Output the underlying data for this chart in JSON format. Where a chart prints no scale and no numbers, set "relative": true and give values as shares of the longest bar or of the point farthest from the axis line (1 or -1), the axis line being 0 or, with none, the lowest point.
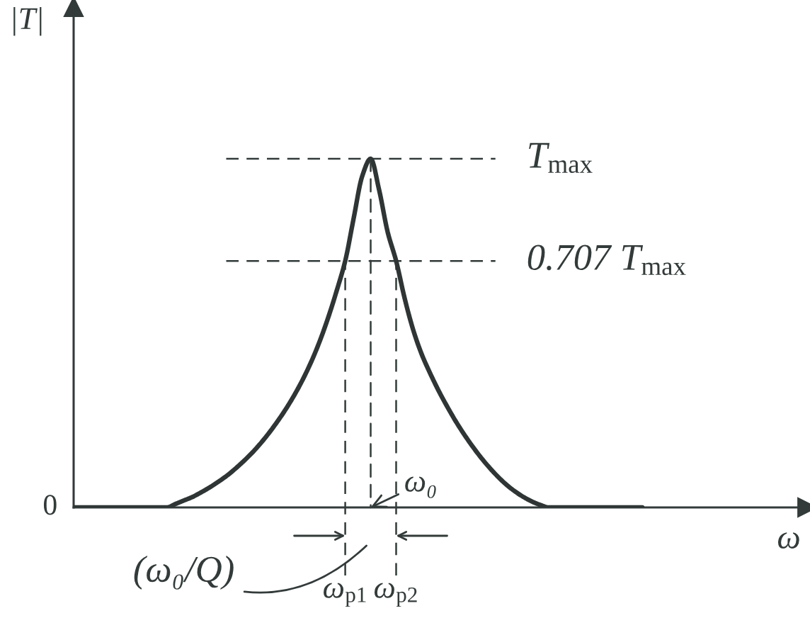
{
  "chart_data": {
    "type": "line",
    "relative": true,
    "ylabel": "|T|",
    "xlabel": "ω",
    "categories": [
      null,
      null,
      null,
      null,
      null,
      null,
      null,
      null,
      null,
      null,
      null,
      null,
      null,
      null,
      null,
      null,
      null,
      null,
      null,
      null,
      null,
      null,
      null,
      null,
      null,
      null,
      null,
      null,
      null,
      null,
      null,
      null,
      "ω$_{p1}$",
      null,
      null,
      null,
      null,
      null,
      "ω$_{p2}$",
      null,
      null,
      null,
      null,
      null,
      null,
      null,
      null,
      null,
      null,
      null,
      null,
      null,
      null,
      null,
      null,
      null,
      null,
      null,
      null,
      null,
      null,
      null,
      null,
      null,
      null,
      null,
      null,
      null
    ],
    "series": [
      {
        "color": "#2f3535",
        "line_style": "solid",
        "values": [
          0,
          0,
          0,
          0,
          0,
          0,
          0,
          0,
          0,
          0,
          0,
          0,
          0.01,
          0.02,
          0.03,
          0.043,
          0.057,
          0.073,
          0.09,
          0.11,
          0.132,
          0.156,
          0.183,
          0.213,
          0.246,
          0.282,
          0.322,
          0.367,
          0.418,
          0.477,
          0.545,
          0.622,
          0.707,
          0.83,
          0.95,
          1,
          0.91,
          0.79,
          0.707,
          0.6,
          0.51,
          0.44,
          0.385,
          0.335,
          0.29,
          0.248,
          0.21,
          0.175,
          0.143,
          0.114,
          0.088,
          0.065,
          0.046,
          0.03,
          0.017,
          0.007,
          0,
          0,
          0,
          0,
          0,
          0,
          0,
          0,
          0,
          0,
          0,
          0
        ]
      }
    ],
    "ref_lines": [
      {
        "axis": "y",
        "value": 1,
        "label": "T$_{max}$",
        "line_style": "dashed"
      },
      {
        "axis": "y",
        "value": 0.707,
        "label": "0.707 T$_{max}$",
        "line_style": "dashed"
      },
      {
        "axis": "x",
        "value": "ω$_{p1}$",
        "line_style": "dashed"
      },
      {
        "axis": "x",
        "value": "ω$_{p2}$",
        "line_style": "dashed"
      }
    ],
    "annotations": [
      "0",
      "ω₀",
      "(ω₀/Q)"
    ]
  }
}
